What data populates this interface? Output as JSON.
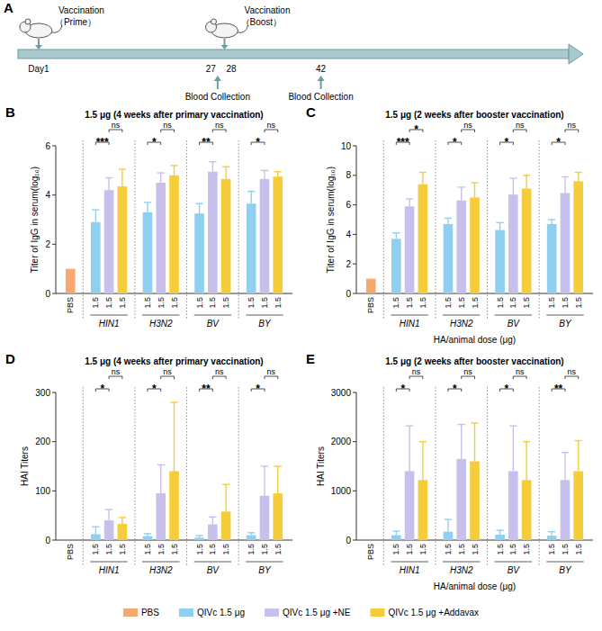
{
  "panel_a": {
    "panel": "A",
    "xlim": [
      -2,
      78
    ],
    "ticks": [
      {
        "value": 1,
        "label": "Day1"
      },
      27,
      28,
      42
    ],
    "vaccinations": [
      {
        "day": 1,
        "title": "Vaccination",
        "subtitle": "（Prime）"
      },
      {
        "day": 28,
        "title": "Vaccination",
        "subtitle": "（Boost）"
      }
    ],
    "blood_collections": [
      {
        "day": 27,
        "label": "Blood Collection"
      },
      {
        "day": 42,
        "label": "Blood Collection"
      }
    ]
  },
  "chart_data": [
    {
      "type": "bar",
      "panel": "B",
      "title": "1.5 μg (4 weeks after primary vaccination)",
      "ylabel": "Titer of IgG in serum(log₁₀)",
      "categories": [
        "PBS",
        "HIN1",
        "H3N2",
        "BV",
        "BY"
      ],
      "ylim": [
        0,
        6
      ],
      "yticks": [
        0,
        2,
        4,
        6
      ],
      "legend": "bottom",
      "series": [
        {
          "name": "PBS",
          "color": "#f7a86e",
          "values": [
            1.0,
            null,
            null,
            null,
            null
          ],
          "errors": [
            0,
            null,
            null,
            null,
            null
          ],
          "dose": [
            null,
            null,
            null,
            null,
            null
          ]
        },
        {
          "name": "QIVc 1.5 μg",
          "color": "#8fd0f0",
          "values": [
            null,
            2.9,
            3.3,
            3.25,
            3.65
          ],
          "errors": [
            null,
            0.5,
            0.4,
            0.4,
            0.5
          ],
          "dose": [
            null,
            1.5,
            1.5,
            1.5,
            1.5
          ]
        },
        {
          "name": "QIVc 1.5 μg +NE",
          "color": "#c8c0ec",
          "values": [
            null,
            4.2,
            4.5,
            4.95,
            4.65
          ],
          "errors": [
            null,
            0.5,
            0.4,
            0.4,
            0.35
          ],
          "dose": [
            null,
            1.5,
            1.5,
            1.5,
            1.5
          ]
        },
        {
          "name": "QIVc 1.5 μg +Addavax",
          "color": "#f5cc3a",
          "values": [
            null,
            4.35,
            4.8,
            4.65,
            4.75
          ],
          "errors": [
            null,
            0.7,
            0.4,
            0.5,
            0.2
          ],
          "dose": [
            null,
            1.5,
            1.5,
            1.5,
            1.5
          ]
        }
      ],
      "annotations": [
        {
          "category": "HIN1",
          "series": [
            1,
            2
          ],
          "label": "***"
        },
        {
          "category": "HIN1",
          "series": [
            2,
            3
          ],
          "label": "ns"
        },
        {
          "category": "H3N2",
          "series": [
            1,
            2
          ],
          "label": "*"
        },
        {
          "category": "H3N2",
          "series": [
            2,
            3
          ],
          "label": "ns"
        },
        {
          "category": "BV",
          "series": [
            1,
            2
          ],
          "label": "**"
        },
        {
          "category": "BV",
          "series": [
            2,
            3
          ],
          "label": "ns"
        },
        {
          "category": "BY",
          "series": [
            1,
            2
          ],
          "label": "*"
        },
        {
          "category": "BY",
          "series": [
            2,
            3
          ],
          "label": "ns"
        }
      ]
    },
    {
      "type": "bar",
      "panel": "C",
      "title": "1.5 μg (2 weeks after booster vaccination)",
      "ylabel": "Titer of IgG in serum(log₁₀)",
      "xlabel": "HA/animal dose (μg)",
      "categories": [
        "PBS",
        "HIN1",
        "H3N2",
        "BV",
        "BY"
      ],
      "ylim": [
        0,
        10
      ],
      "yticks": [
        0,
        2,
        4,
        6,
        8,
        10
      ],
      "legend": "bottom",
      "series": [
        {
          "name": "PBS",
          "color": "#f7a86e",
          "values": [
            1.0,
            null,
            null,
            null,
            null
          ],
          "errors": [
            0,
            null,
            null,
            null,
            null
          ],
          "dose": [
            null,
            null,
            null,
            null,
            null
          ]
        },
        {
          "name": "QIVc 1.5 μg",
          "color": "#8fd0f0",
          "values": [
            null,
            3.7,
            4.7,
            4.3,
            4.7
          ],
          "errors": [
            null,
            0.4,
            0.4,
            0.5,
            0.3
          ],
          "dose": [
            null,
            1.5,
            1.5,
            1.5,
            1.5
          ]
        },
        {
          "name": "QIVc 1.5 μg +NE",
          "color": "#c8c0ec",
          "values": [
            null,
            5.9,
            6.3,
            6.7,
            6.8
          ],
          "errors": [
            null,
            0.5,
            0.9,
            1.1,
            1.1
          ],
          "dose": [
            null,
            1.5,
            1.5,
            1.5,
            1.5
          ]
        },
        {
          "name": "QIVc 1.5 μg +Addavax",
          "color": "#f5cc3a",
          "values": [
            null,
            7.4,
            6.5,
            7.1,
            7.6
          ],
          "errors": [
            null,
            0.8,
            1.0,
            0.9,
            0.6
          ],
          "dose": [
            null,
            1.5,
            1.5,
            1.5,
            1.5
          ]
        }
      ],
      "annotations": [
        {
          "category": "HIN1",
          "series": [
            1,
            2
          ],
          "label": "***"
        },
        {
          "category": "HIN1",
          "series": [
            2,
            3
          ],
          "label": "*"
        },
        {
          "category": "H3N2",
          "series": [
            1,
            2
          ],
          "label": "*"
        },
        {
          "category": "H3N2",
          "series": [
            2,
            3
          ],
          "label": "ns"
        },
        {
          "category": "BV",
          "series": [
            1,
            2
          ],
          "label": "*"
        },
        {
          "category": "BV",
          "series": [
            2,
            3
          ],
          "label": "ns"
        },
        {
          "category": "BY",
          "series": [
            1,
            2
          ],
          "label": "*"
        },
        {
          "category": "BY",
          "series": [
            2,
            3
          ],
          "label": "ns"
        }
      ]
    },
    {
      "type": "bar",
      "panel": "D",
      "title": "1.5 μg (4 weeks after primary vaccination)",
      "ylabel": "HAI Titers",
      "categories": [
        "PBS",
        "HIN1",
        "H3N2",
        "BV",
        "BY"
      ],
      "ylim": [
        0,
        300
      ],
      "yticks": [
        0,
        100,
        200,
        300
      ],
      "legend": "bottom",
      "series": [
        {
          "name": "PBS",
          "color": "#f7a86e",
          "values": [
            0,
            null,
            null,
            null,
            null
          ],
          "errors": [
            0,
            null,
            null,
            null,
            null
          ],
          "dose": [
            null,
            null,
            null,
            null,
            null
          ]
        },
        {
          "name": "QIVc 1.5 μg",
          "color": "#8fd0f0",
          "values": [
            null,
            12,
            8,
            5,
            10
          ],
          "errors": [
            null,
            15,
            5,
            4,
            5
          ],
          "dose": [
            null,
            1.5,
            1.5,
            1.5,
            1.5
          ]
        },
        {
          "name": "QIVc 1.5 μg +NE",
          "color": "#c8c0ec",
          "values": [
            null,
            40,
            95,
            32,
            90
          ],
          "errors": [
            null,
            22,
            58,
            15,
            60
          ],
          "dose": [
            null,
            1.5,
            1.5,
            1.5,
            1.5
          ]
        },
        {
          "name": "QIVc 1.5 μg +Addavax",
          "color": "#f5cc3a",
          "values": [
            null,
            33,
            140,
            58,
            95
          ],
          "errors": [
            null,
            13,
            140,
            55,
            55
          ],
          "dose": [
            null,
            1.5,
            1.5,
            1.5,
            1.5
          ]
        }
      ],
      "annotations": [
        {
          "category": "HIN1",
          "series": [
            1,
            2
          ],
          "label": "*"
        },
        {
          "category": "HIN1",
          "series": [
            2,
            3
          ],
          "label": "ns"
        },
        {
          "category": "H3N2",
          "series": [
            1,
            2
          ],
          "label": "*"
        },
        {
          "category": "H3N2",
          "series": [
            2,
            3
          ],
          "label": "ns"
        },
        {
          "category": "BV",
          "series": [
            1,
            2
          ],
          "label": "**"
        },
        {
          "category": "BV",
          "series": [
            2,
            3
          ],
          "label": "ns"
        },
        {
          "category": "BY",
          "series": [
            1,
            2
          ],
          "label": "*"
        },
        {
          "category": "BY",
          "series": [
            2,
            3
          ],
          "label": "ns"
        }
      ]
    },
    {
      "type": "bar",
      "panel": "E",
      "title": "1.5 μg (2 weeks after booster vaccination)",
      "ylabel": "HAI Titers",
      "xlabel": "HA/animal dose (μg)",
      "categories": [
        "PBS",
        "HIN1",
        "H3N2",
        "BV",
        "BY"
      ],
      "ylim": [
        0,
        3000
      ],
      "yticks": [
        0,
        1000,
        2000,
        3000
      ],
      "legend": "bottom",
      "series": [
        {
          "name": "PBS",
          "color": "#f7a86e",
          "values": [
            0,
            null,
            null,
            null,
            null
          ],
          "errors": [
            0,
            null,
            null,
            null,
            null
          ],
          "dose": [
            null,
            null,
            null,
            null,
            null
          ]
        },
        {
          "name": "QIVc 1.5 μg",
          "color": "#8fd0f0",
          "values": [
            null,
            100,
            170,
            110,
            90
          ],
          "errors": [
            null,
            80,
            250,
            90,
            80
          ],
          "dose": [
            null,
            1.5,
            1.5,
            1.5,
            1.5
          ]
        },
        {
          "name": "QIVc 1.5 μg +NE",
          "color": "#c8c0ec",
          "values": [
            null,
            1400,
            1650,
            1400,
            1220
          ],
          "errors": [
            null,
            920,
            700,
            920,
            560
          ],
          "dose": [
            null,
            1.5,
            1.5,
            1.5,
            1.5
          ]
        },
        {
          "name": "QIVc 1.5 μg +Addavax",
          "color": "#f5cc3a",
          "values": [
            null,
            1220,
            1600,
            1220,
            1400
          ],
          "errors": [
            null,
            780,
            780,
            780,
            620
          ],
          "dose": [
            null,
            1.5,
            1.5,
            1.5,
            1.5
          ]
        }
      ],
      "annotations": [
        {
          "category": "HIN1",
          "series": [
            1,
            2
          ],
          "label": "*"
        },
        {
          "category": "HIN1",
          "series": [
            2,
            3
          ],
          "label": "ns"
        },
        {
          "category": "H3N2",
          "series": [
            1,
            2
          ],
          "label": "*"
        },
        {
          "category": "H3N2",
          "series": [
            2,
            3
          ],
          "label": "ns"
        },
        {
          "category": "BV",
          "series": [
            1,
            2
          ],
          "label": "*"
        },
        {
          "category": "BV",
          "series": [
            2,
            3
          ],
          "label": "ns"
        },
        {
          "category": "BY",
          "series": [
            1,
            2
          ],
          "label": "**"
        },
        {
          "category": "BY",
          "series": [
            2,
            3
          ],
          "label": "ns"
        }
      ]
    }
  ]
}
